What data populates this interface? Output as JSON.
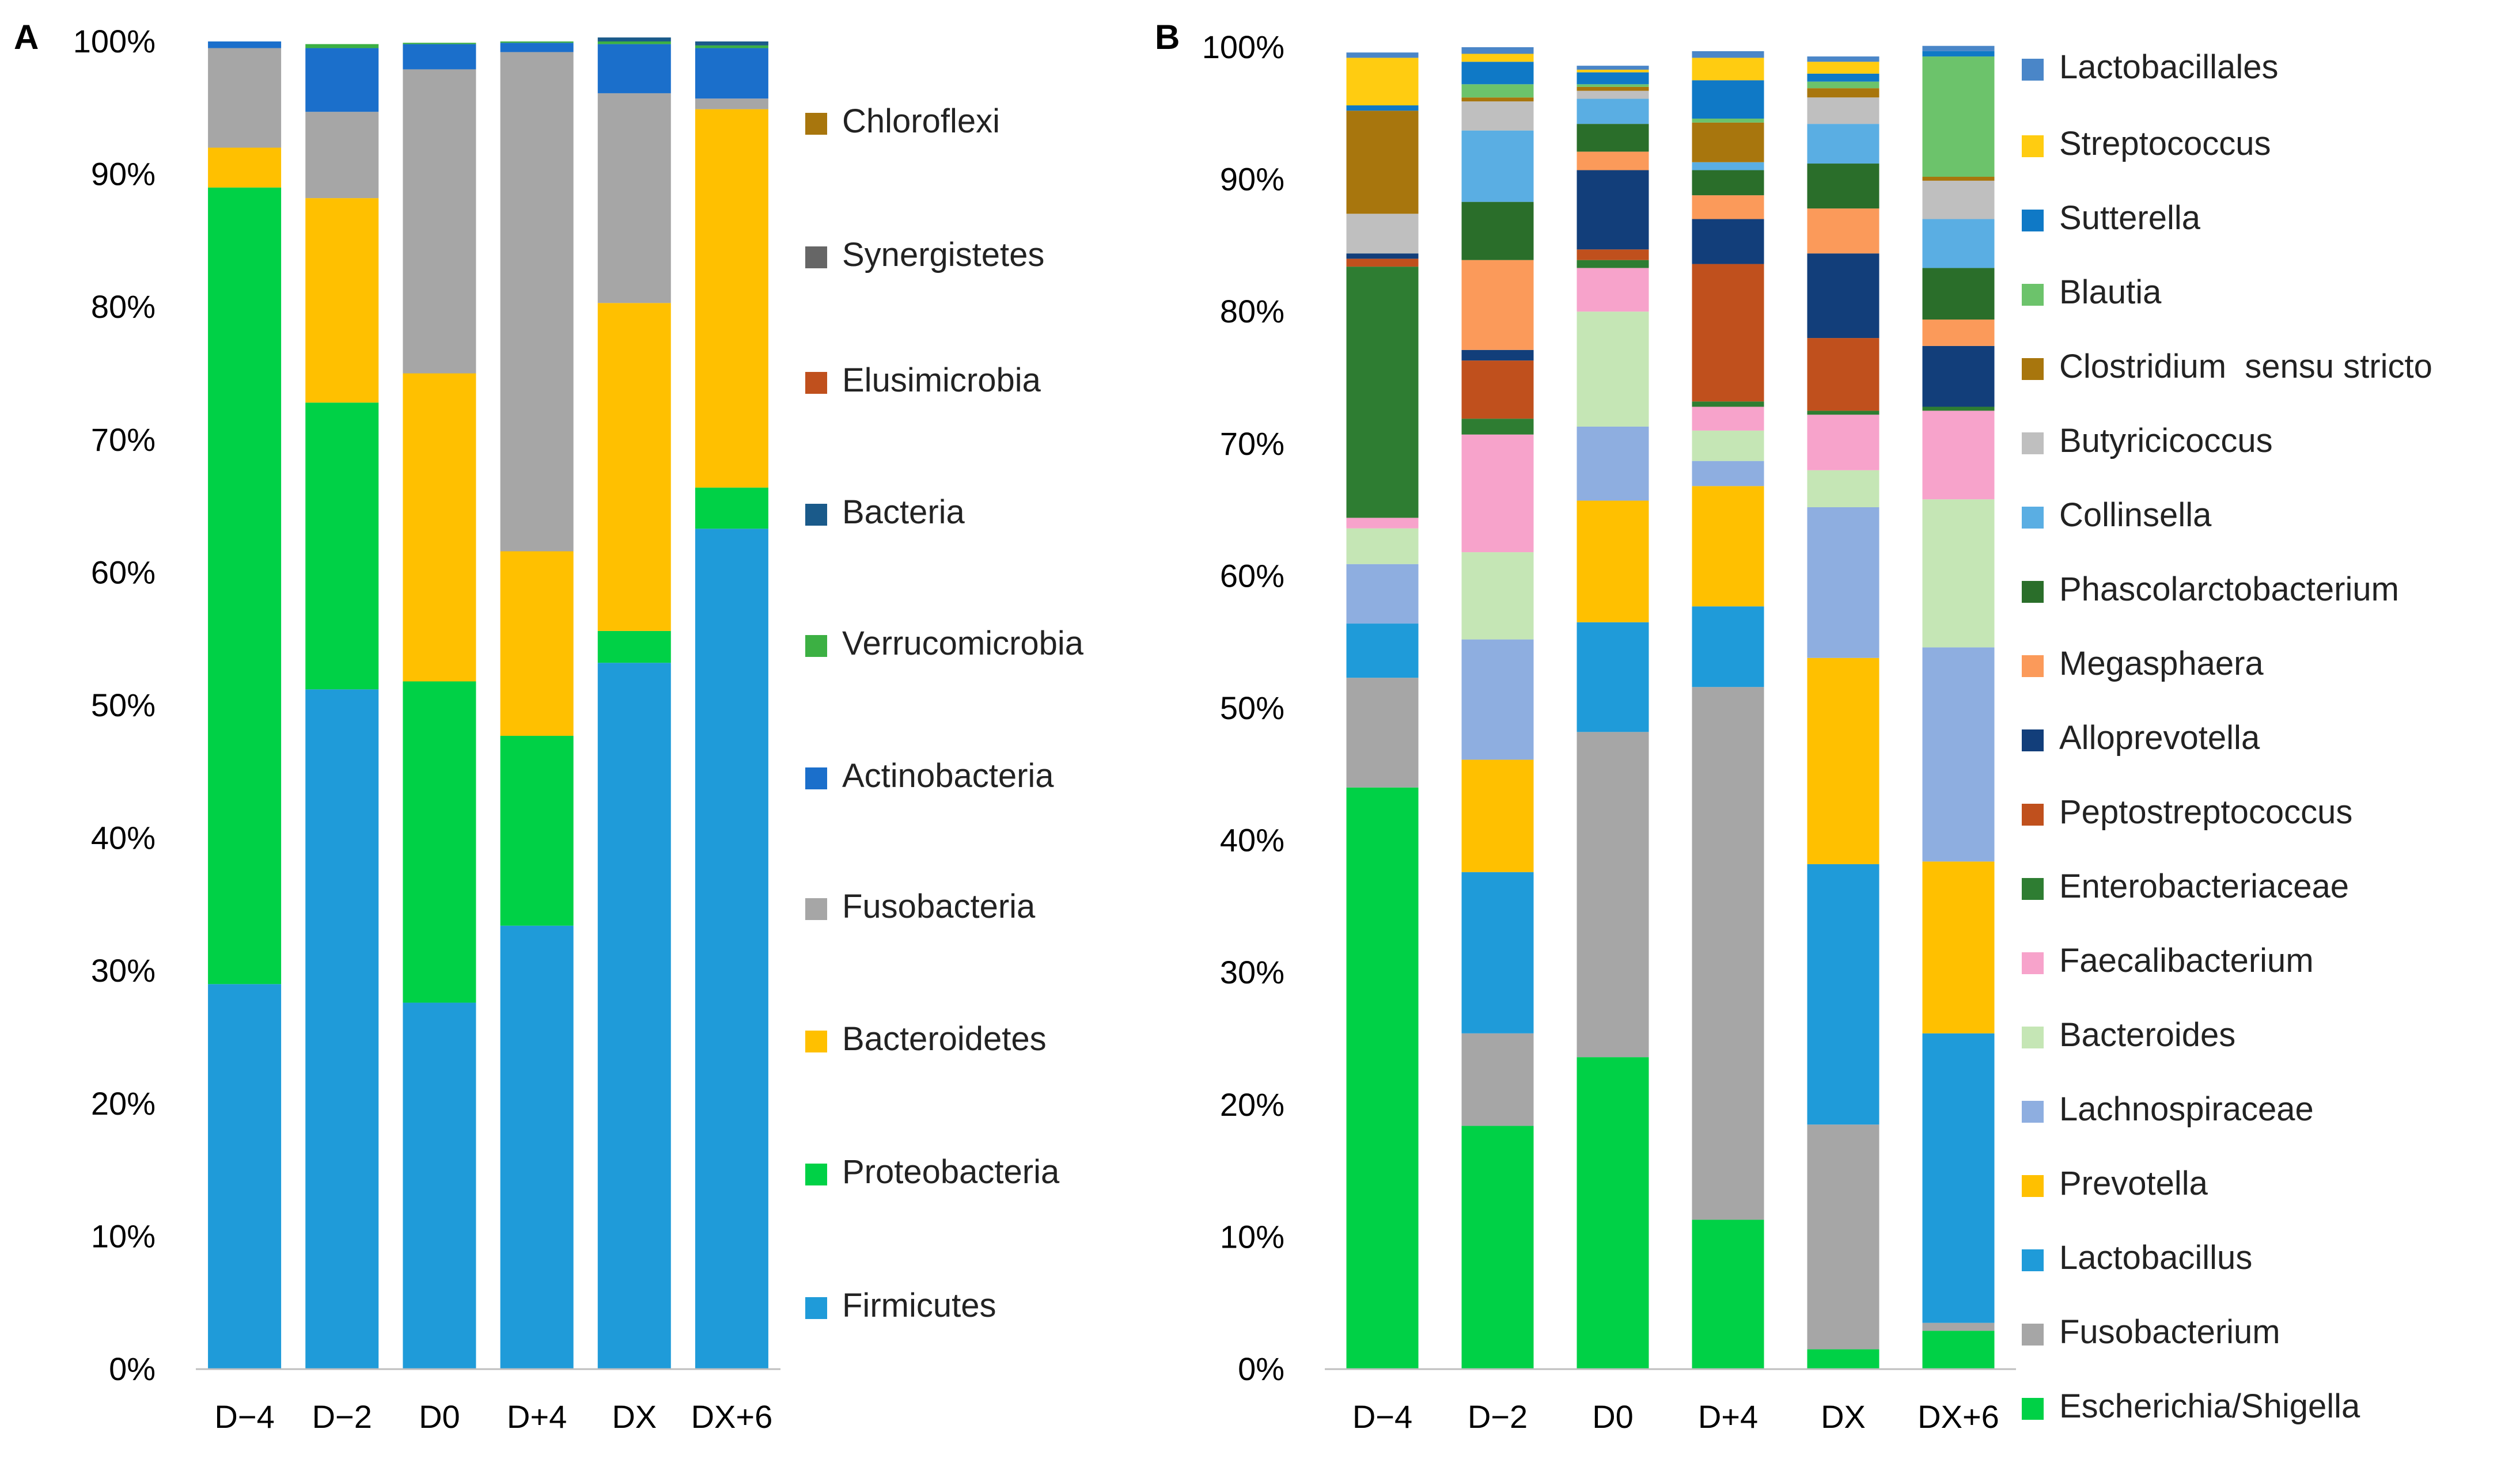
{
  "figure": {
    "panels": [
      "A",
      "B"
    ]
  },
  "chart_data": [
    {
      "panel": "A",
      "type": "bar",
      "stacked": true,
      "title": "",
      "xlabel": "",
      "ylabel": "",
      "ylim": [
        0,
        100
      ],
      "y_ticks": [
        "0%",
        "10%",
        "20%",
        "30%",
        "40%",
        "50%",
        "60%",
        "70%",
        "80%",
        "90%",
        "100%"
      ],
      "categories": [
        "D−4",
        "D−2",
        "D0",
        "D+4",
        "DX",
        "DX+6"
      ],
      "legend_position": "right",
      "series": [
        {
          "name": "Firmicutes",
          "color": "#1f9bd9",
          "values": [
            29.0,
            51.2,
            27.6,
            33.4,
            53.2,
            63.3
          ]
        },
        {
          "name": "Proteobacteria",
          "color": "#00d146",
          "values": [
            60.0,
            21.6,
            24.2,
            14.3,
            2.4,
            3.1
          ]
        },
        {
          "name": "Bacteroidetes",
          "color": "#ffc000",
          "values": [
            3.0,
            15.4,
            23.2,
            13.9,
            24.7,
            28.5
          ]
        },
        {
          "name": "Fusobacteria",
          "color": "#a6a6a6",
          "values": [
            7.5,
            6.5,
            22.9,
            37.6,
            15.8,
            0.8
          ]
        },
        {
          "name": "Actinobacteria",
          "color": "#1b6fcb",
          "values": [
            0.5,
            4.8,
            1.9,
            0.7,
            3.7,
            3.8
          ]
        },
        {
          "name": "Verrucomicrobia",
          "color": "#3cb043",
          "values": [
            0,
            0.3,
            0.1,
            0.1,
            0.2,
            0.2
          ]
        },
        {
          "name": "Bacteria",
          "color": "#1a5a8a",
          "values": [
            0,
            0,
            0,
            0,
            0.3,
            0.3
          ]
        },
        {
          "name": "Elusimicrobia",
          "color": "#c0501d",
          "values": [
            0,
            0,
            0,
            0,
            0,
            0
          ]
        },
        {
          "name": "Synergistetes",
          "color": "#666666",
          "values": [
            0,
            0,
            0,
            0,
            0,
            0
          ]
        },
        {
          "name": "Chloroflexi",
          "color": "#a8760d",
          "values": [
            0,
            0,
            0,
            0,
            0,
            0
          ]
        }
      ]
    },
    {
      "panel": "B",
      "type": "bar",
      "stacked": true,
      "title": "",
      "xlabel": "",
      "ylabel": "",
      "ylim": [
        0,
        100
      ],
      "y_ticks": [
        "0%",
        "10%",
        "20%",
        "30%",
        "40%",
        "50%",
        "60%",
        "70%",
        "80%",
        "90%",
        "100%"
      ],
      "categories": [
        "D−4",
        "D−2",
        "D0",
        "D+4",
        "DX",
        "DX+6"
      ],
      "legend_position": "right",
      "series": [
        {
          "name": "Escherichia/Shigella",
          "color": "#00d146",
          "values": [
            44.0,
            18.4,
            23.6,
            11.3,
            1.5,
            2.9
          ]
        },
        {
          "name": "Fusobacterium",
          "color": "#a6a6a6",
          "values": [
            8.3,
            7.0,
            24.6,
            40.3,
            17.0,
            0.6
          ]
        },
        {
          "name": "Lactobacillus",
          "color": "#1f9bd9",
          "values": [
            4.1,
            12.2,
            8.3,
            6.1,
            19.7,
            21.9
          ]
        },
        {
          "name": "Prevotella",
          "color": "#ffc000",
          "values": [
            0,
            8.5,
            9.2,
            9.1,
            15.6,
            13.0
          ]
        },
        {
          "name": "Lachnospiraceae",
          "color": "#8eaee0",
          "values": [
            4.5,
            9.1,
            5.6,
            1.9,
            11.4,
            16.2
          ]
        },
        {
          "name": "Bacteroides",
          "color": "#c5e6b5",
          "values": [
            2.7,
            6.6,
            8.7,
            2.3,
            2.8,
            11.2
          ]
        },
        {
          "name": "Faecalibacterium",
          "color": "#f7a3cb",
          "values": [
            0.8,
            8.9,
            3.3,
            1.8,
            4.2,
            6.7
          ]
        },
        {
          "name": "Enterobacteriaceae",
          "color": "#2e7d32",
          "values": [
            19.0,
            1.2,
            0.6,
            0.4,
            0.3,
            0.3
          ]
        },
        {
          "name": "Peptostreptococcus",
          "color": "#c0501d",
          "values": [
            0.6,
            4.4,
            0.8,
            10.4,
            5.5,
            0
          ]
        },
        {
          "name": "Alloprevotella",
          "color": "#123e7a",
          "values": [
            0.4,
            0.8,
            6.0,
            3.4,
            6.4,
            4.6
          ]
        },
        {
          "name": "Megasphaera",
          "color": "#fb9a5a",
          "values": [
            0,
            6.8,
            1.4,
            1.8,
            3.4,
            2.0
          ]
        },
        {
          "name": "Phascolarctobacterium",
          "color": "#2a6e2a",
          "values": [
            0,
            4.4,
            2.1,
            1.9,
            3.4,
            3.9
          ]
        },
        {
          "name": "Collinsella",
          "color": "#5aaee3",
          "values": [
            0,
            5.4,
            1.9,
            0.6,
            3.0,
            3.7
          ]
        },
        {
          "name": "Butyricicoccus",
          "color": "#bfbfbf",
          "values": [
            3.0,
            2.2,
            0.6,
            0,
            2.0,
            2.9
          ]
        },
        {
          "name": "Clostridium  sensu stricto",
          "color": "#a8760d",
          "values": [
            7.8,
            0.3,
            0.3,
            3.0,
            0.7,
            0.3
          ]
        },
        {
          "name": "Blautia",
          "color": "#6cc36b",
          "values": [
            0,
            1.0,
            0.2,
            0.3,
            0.5,
            9.1
          ]
        },
        {
          "name": "Sutterella",
          "color": "#0f79c6",
          "values": [
            0.4,
            1.7,
            0.9,
            2.9,
            0.6,
            0.4
          ]
        },
        {
          "name": "Streptococcus",
          "color": "#ffcc11",
          "values": [
            3.6,
            0.6,
            0.2,
            1.7,
            0.9,
            0
          ]
        },
        {
          "name": "Lactobacillales",
          "color": "#4a86c8",
          "values": [
            0.4,
            0.5,
            0.3,
            0.5,
            0.4,
            0.4
          ]
        }
      ]
    }
  ]
}
